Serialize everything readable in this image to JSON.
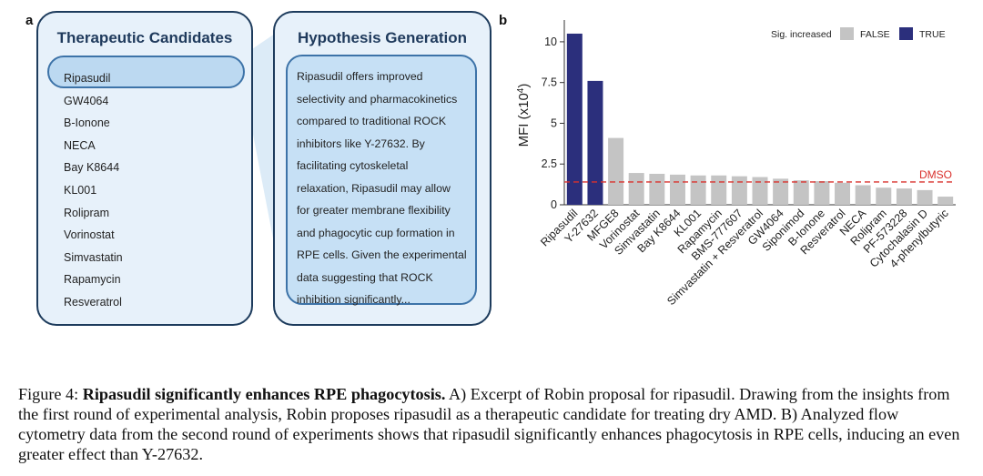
{
  "panel_a": {
    "letter": "a",
    "candidates_title": "Therapeutic Candidates",
    "candidates": [
      "Ripasudil",
      "GW4064",
      "B-Ionone",
      "NECA",
      "Bay K8644",
      "KL001",
      "Rolipram",
      "Vorinostat",
      "Simvastatin",
      "Rapamycin",
      "Resveratrol"
    ],
    "highlighted": "Ripasudil",
    "hypothesis_title": "Hypothesis Generation",
    "hypothesis_text": "Ripasudil offers improved\nselectivity and pharmacokinetics\ncompared to traditional ROCK\ninhibitors like Y-27632. By\nfacilitating cytoskeletal\nrelaxation, Ripasudil may allow\nfor greater membrane flexibility\nand phagocytic cup formation in\nRPE cells. Given the experimental\ndata suggesting that ROCK\ninhibition significantly..."
  },
  "panel_b": {
    "letter": "b"
  },
  "chart_data": {
    "type": "bar",
    "ylabel": "MFI (x10⁴)",
    "ylim": [
      0,
      11
    ],
    "yticks": [
      0,
      2.5,
      5,
      7.5,
      10
    ],
    "ytick_labels": [
      "0",
      "2.5",
      "5",
      "7.5",
      "10"
    ],
    "categories": [
      "Ripasudil",
      "Y-27632",
      "MFGE8",
      "Vorinostat",
      "Simvastatin",
      "Bay K8644",
      "KL001",
      "Rapamycin",
      "BMS-777607",
      "Simvastatin + Resveratrol",
      "GW4064",
      "Siponimod",
      "B-Ionone",
      "Resveratrol",
      "NECA",
      "Rolipram",
      "PF-573228",
      "Cytochalasin D",
      "4-phenylbutyric"
    ],
    "values": [
      10.5,
      7.6,
      4.1,
      1.95,
      1.9,
      1.85,
      1.8,
      1.8,
      1.75,
      1.7,
      1.6,
      1.5,
      1.45,
      1.35,
      1.2,
      1.05,
      1.0,
      0.9,
      0.5
    ],
    "sig_increased": [
      true,
      true,
      false,
      false,
      false,
      false,
      false,
      false,
      false,
      false,
      false,
      false,
      false,
      false,
      false,
      false,
      false,
      false,
      false
    ],
    "legend_title": "Sig. increased",
    "legend": [
      {
        "label": "FALSE",
        "color": "#c4c4c4"
      },
      {
        "label": "TRUE",
        "color": "#2b2f7c"
      }
    ],
    "reference_line": {
      "label": "DMSO",
      "value": 1.4,
      "color": "#d9302c"
    },
    "grid": false,
    "legend_placement": "top-right"
  },
  "caption": {
    "prefix": "Figure 4: ",
    "bold": "Ripasudil significantly enhances RPE phagocytosis.",
    "text": " A) Excerpt of Robin proposal for ripasudil. Drawing from the insights from the first round of experimental analysis, Robin proposes ripasudil as a therapeutic candidate for treating dry AMD. B) Analyzed flow cytometry data from the second round of experiments shows that ripasudil significantly enhances phagocytosis in RPE cells, inducing an even greater effect than Y-27632."
  }
}
